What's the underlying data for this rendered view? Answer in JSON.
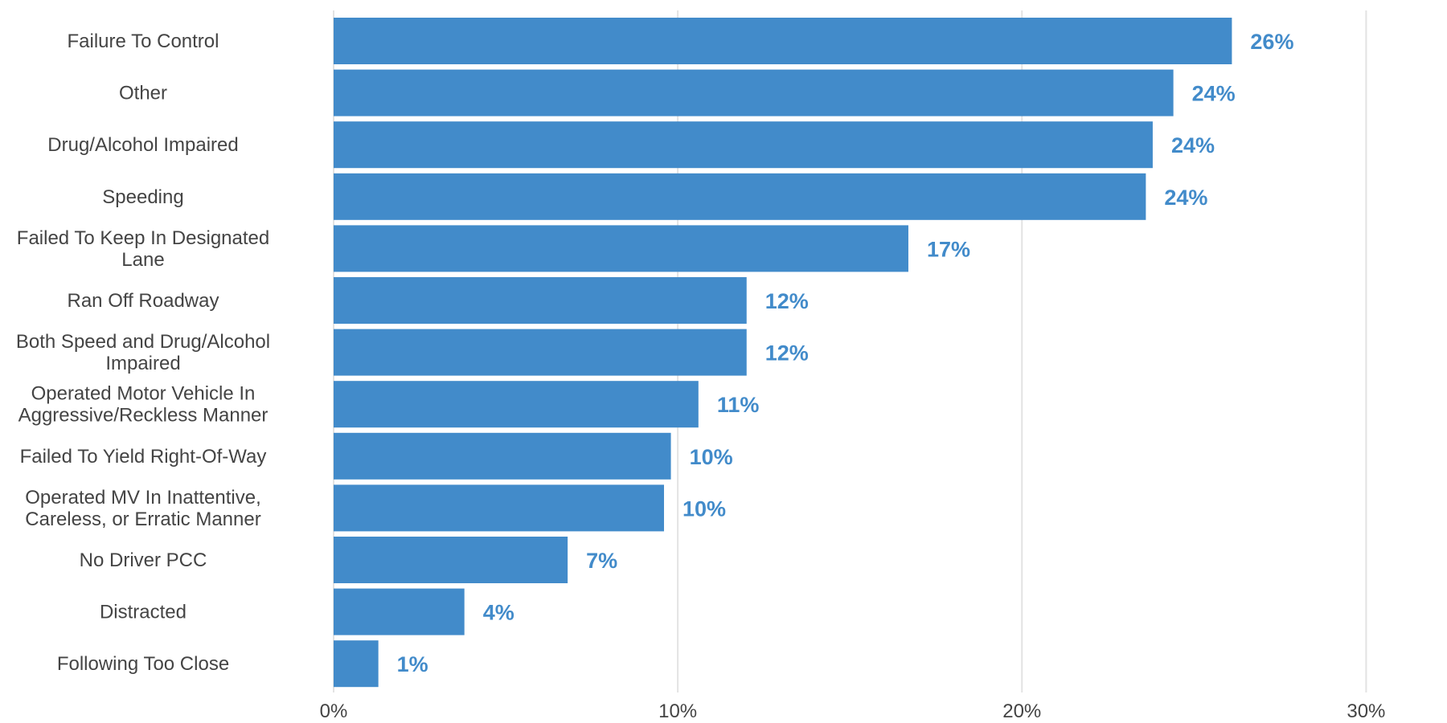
{
  "chart_data": {
    "type": "bar",
    "orientation": "horizontal",
    "categories": [
      "Failure To Control",
      "Other",
      "Drug/Alcohol Impaired",
      "Speeding",
      "Failed To Keep In Designated Lane",
      "Ran Off Roadway",
      "Both Speed and Drug/Alcohol Impaired",
      "Operated Motor Vehicle In Aggressive/Reckless Manner",
      "Failed To Yield Right-Of-Way",
      "Operated MV In Inattentive, Careless, or Erratic Manner",
      "No Driver PCC",
      "Distracted",
      "Following Too Close"
    ],
    "category_lines": [
      [
        "Failure To Control"
      ],
      [
        "Other"
      ],
      [
        "Drug/Alcohol Impaired"
      ],
      [
        "Speeding"
      ],
      [
        "Failed To Keep In Designated",
        "Lane"
      ],
      [
        "Ran Off Roadway"
      ],
      [
        "Both Speed and Drug/Alcohol",
        "Impaired"
      ],
      [
        "Operated Motor Vehicle In",
        "Aggressive/Reckless Manner"
      ],
      [
        "Failed To Yield Right-Of-Way"
      ],
      [
        "Operated MV In Inattentive,",
        "Careless, or Erratic Manner"
      ],
      [
        "No Driver PCC"
      ],
      [
        "Distracted"
      ],
      [
        "Following Too Close"
      ]
    ],
    "values": [
      26.1,
      24.4,
      23.8,
      23.6,
      16.7,
      12.0,
      12.0,
      10.6,
      9.8,
      9.6,
      6.8,
      3.8,
      1.3
    ],
    "value_labels": [
      "26%",
      "24%",
      "24%",
      "24%",
      "17%",
      "12%",
      "12%",
      "11%",
      "10%",
      "10%",
      "7%",
      "4%",
      "1%"
    ],
    "xlim": [
      0,
      32
    ],
    "xticks": [
      0,
      10,
      20,
      30
    ],
    "xtick_labels": [
      "0%",
      "10%",
      "20%",
      "30%"
    ],
    "grid": "vertical",
    "legend": "none",
    "title": "",
    "xlabel": "",
    "ylabel": "",
    "colors": {
      "bar": "#428bca",
      "value_label": "#428bca",
      "grid": "#e3e3e3",
      "text": "#444444"
    }
  }
}
